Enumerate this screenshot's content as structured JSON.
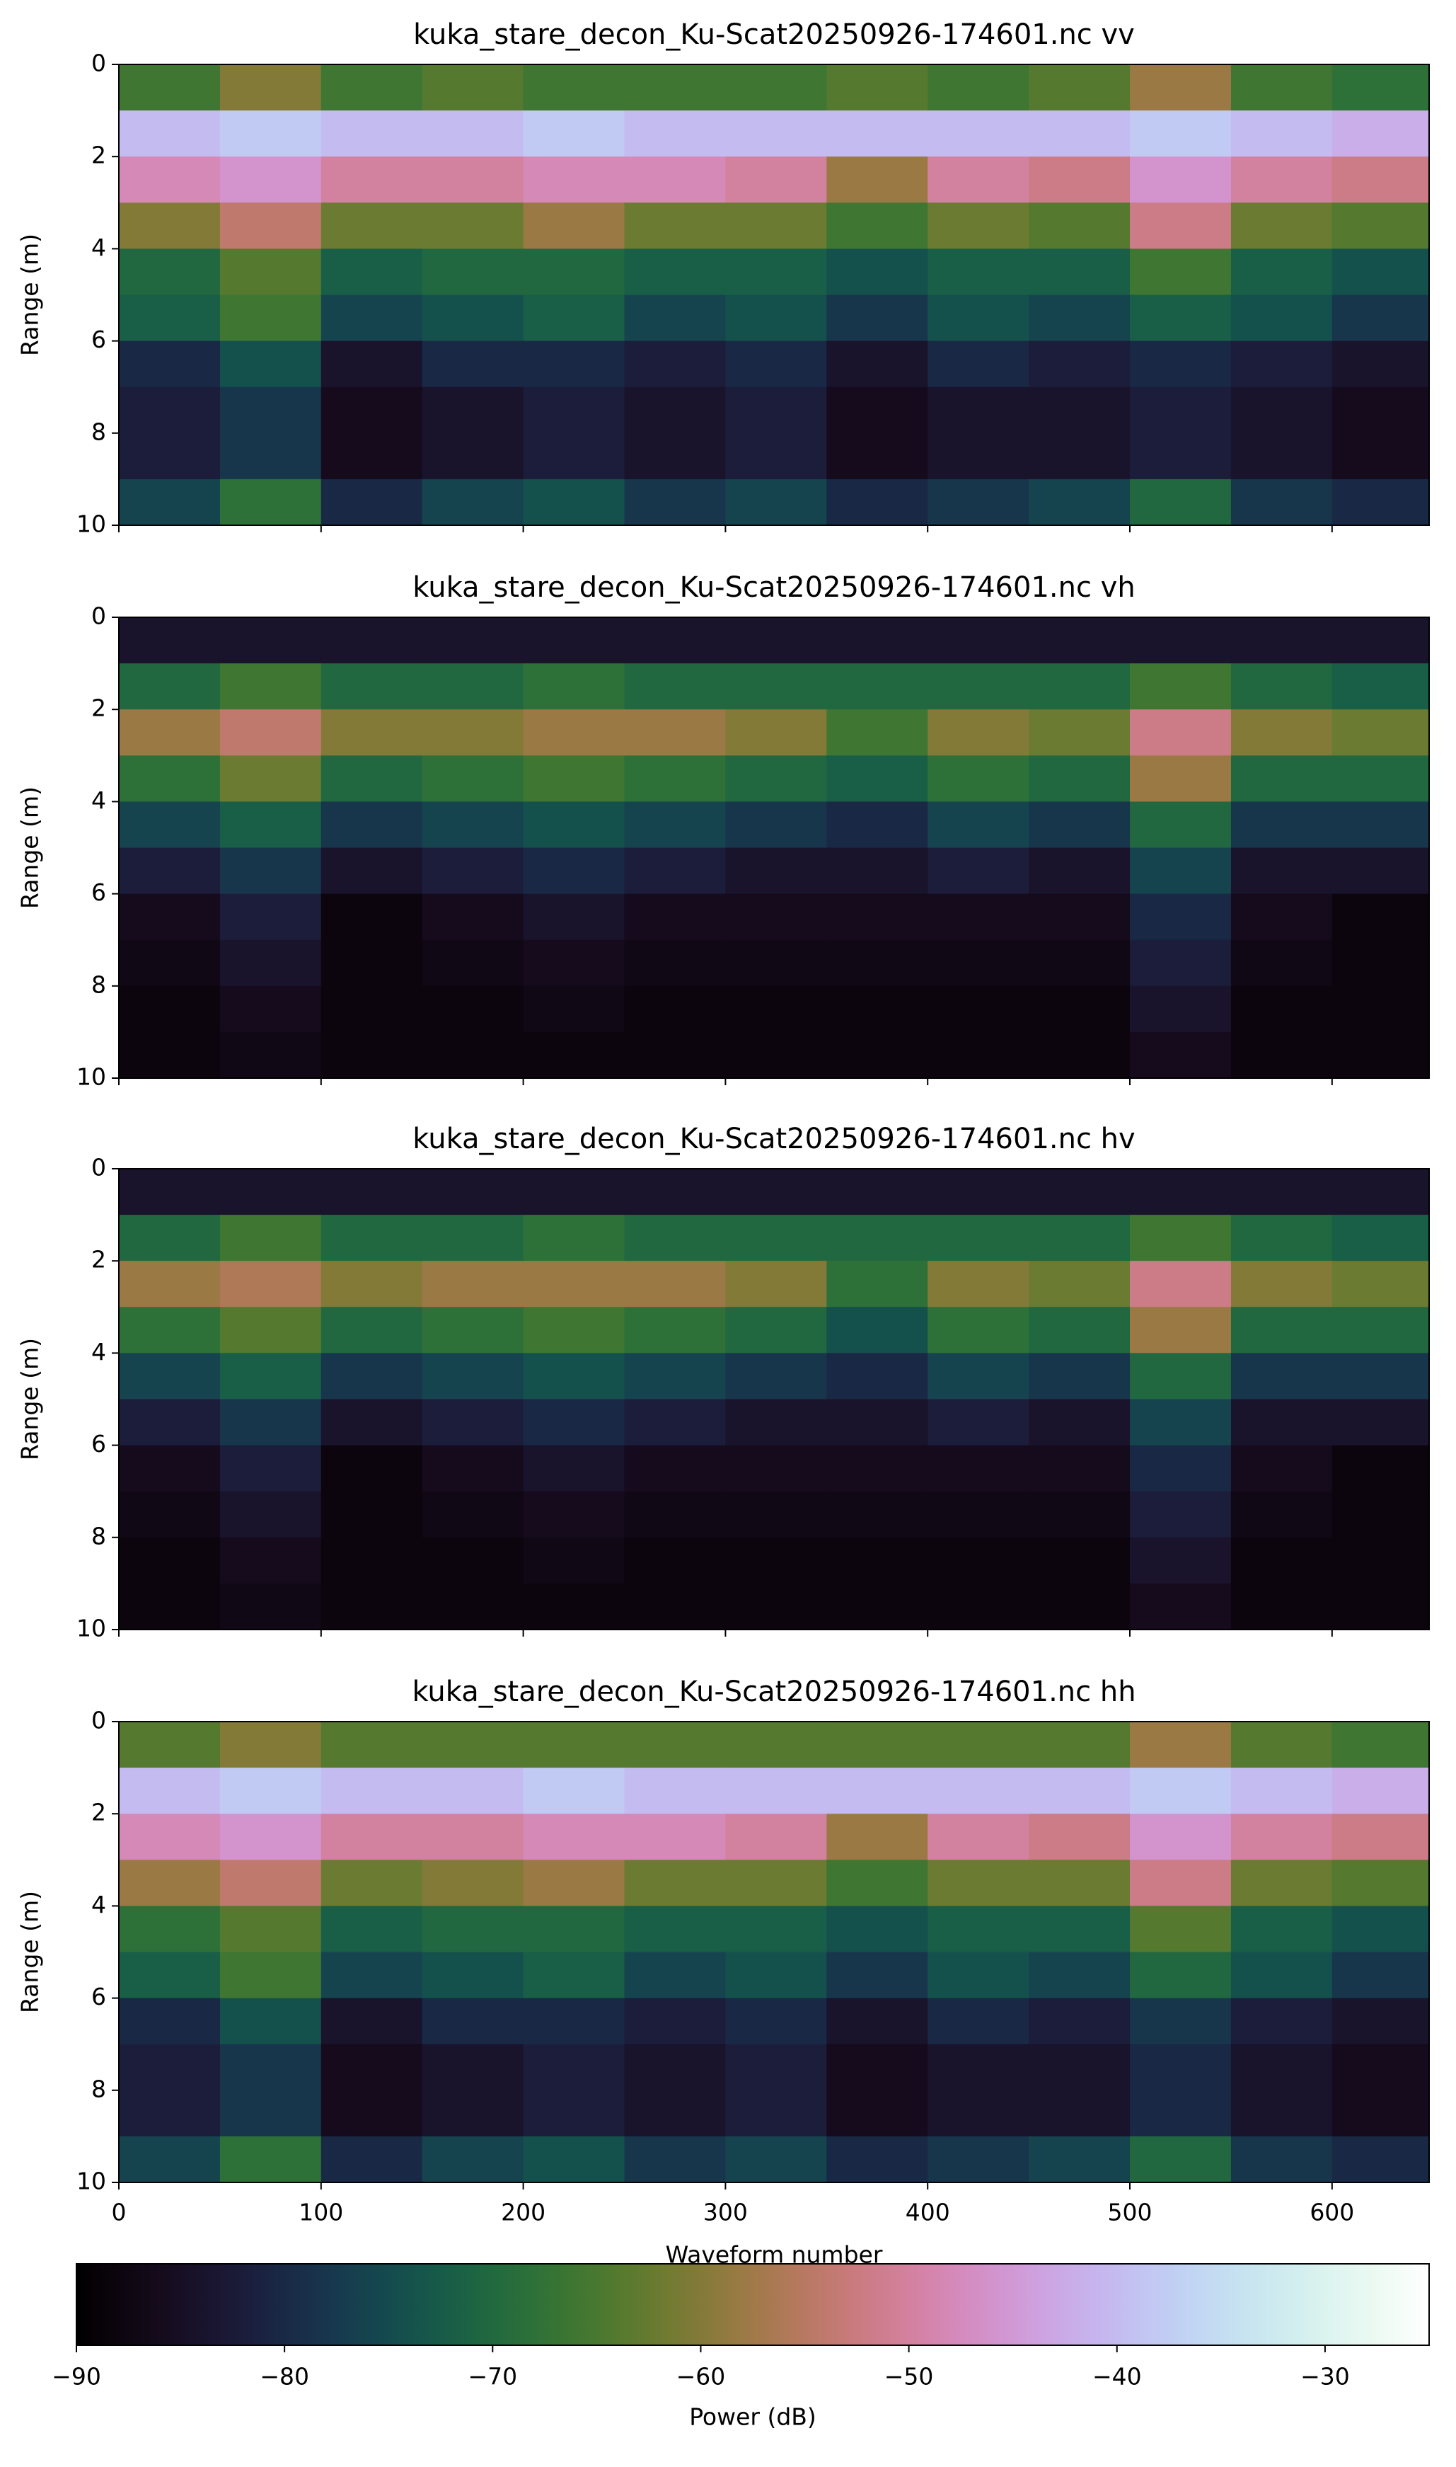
{
  "chart_data": [
    {
      "type": "heatmap",
      "title": "kuka_stare_decon_Ku-Scat20250926-174601.nc vv",
      "ylabel": "Range (m)",
      "x_bins": [
        0,
        50,
        100,
        150,
        200,
        250,
        300,
        350,
        400,
        450,
        500,
        550,
        600,
        648
      ],
      "y_bins": [
        0,
        1,
        2,
        3,
        4,
        5,
        6,
        7,
        8,
        9,
        10
      ],
      "xlim": [
        0,
        648
      ],
      "xticks": [
        0,
        100,
        200,
        300,
        400,
        500,
        600
      ],
      "ylim": [
        10,
        0
      ],
      "yticks": [
        0,
        2,
        4,
        6,
        8,
        10
      ],
      "values": [
        [
          -66,
          -60,
          -66,
          -64,
          -66,
          -66,
          -66,
          -64,
          -66,
          -64,
          -58,
          -66,
          -68
        ],
        [
          -40,
          -38,
          -40,
          -40,
          -38,
          -40,
          -40,
          -40,
          -40,
          -40,
          -38,
          -40,
          -42
        ],
        [
          -48,
          -46,
          -50,
          -50,
          -48,
          -48,
          -50,
          -58,
          -50,
          -52,
          -46,
          -50,
          -52
        ],
        [
          -60,
          -54,
          -62,
          -62,
          -58,
          -62,
          -62,
          -66,
          -62,
          -64,
          -52,
          -62,
          -64
        ],
        [
          -70,
          -64,
          -72,
          -70,
          -70,
          -72,
          -72,
          -74,
          -72,
          -72,
          -66,
          -72,
          -74
        ],
        [
          -72,
          -66,
          -76,
          -74,
          -72,
          -76,
          -74,
          -78,
          -74,
          -76,
          -72,
          -74,
          -78
        ],
        [
          -80,
          -74,
          -84,
          -80,
          -80,
          -82,
          -80,
          -84,
          -80,
          -82,
          -80,
          -82,
          -84
        ],
        [
          -82,
          -78,
          -86,
          -84,
          -82,
          -84,
          -82,
          -86,
          -84,
          -84,
          -82,
          -84,
          -86
        ],
        [
          -82,
          -78,
          -86,
          -84,
          -82,
          -84,
          -82,
          -86,
          -84,
          -84,
          -82,
          -84,
          -86
        ],
        [
          -76,
          -68,
          -80,
          -76,
          -74,
          -78,
          -76,
          -80,
          -78,
          -76,
          -70,
          -78,
          -80
        ]
      ]
    },
    {
      "type": "heatmap",
      "title": "kuka_stare_decon_Ku-Scat20250926-174601.nc vh",
      "ylabel": "Range (m)",
      "x_bins": [
        0,
        50,
        100,
        150,
        200,
        250,
        300,
        350,
        400,
        450,
        500,
        550,
        600,
        648
      ],
      "y_bins": [
        0,
        1,
        2,
        3,
        4,
        5,
        6,
        7,
        8,
        9,
        10
      ],
      "xlim": [
        0,
        648
      ],
      "xticks": [
        0,
        100,
        200,
        300,
        400,
        500,
        600
      ],
      "ylim": [
        10,
        0
      ],
      "yticks": [
        0,
        2,
        4,
        6,
        8,
        10
      ],
      "values": [
        [
          -84,
          -84,
          -84,
          -84,
          -84,
          -84,
          -84,
          -84,
          -84,
          -84,
          -84,
          -84,
          -84
        ],
        [
          -70,
          -66,
          -70,
          -70,
          -68,
          -70,
          -70,
          -70,
          -70,
          -70,
          -66,
          -70,
          -72
        ],
        [
          -58,
          -54,
          -60,
          -60,
          -58,
          -58,
          -60,
          -66,
          -60,
          -62,
          -52,
          -60,
          -62
        ],
        [
          -68,
          -62,
          -70,
          -68,
          -66,
          -68,
          -70,
          -72,
          -68,
          -70,
          -58,
          -70,
          -70
        ],
        [
          -76,
          -72,
          -78,
          -76,
          -74,
          -76,
          -78,
          -80,
          -76,
          -78,
          -70,
          -78,
          -78
        ],
        [
          -82,
          -78,
          -84,
          -82,
          -80,
          -82,
          -84,
          -84,
          -82,
          -84,
          -76,
          -84,
          -84
        ],
        [
          -86,
          -82,
          -88,
          -86,
          -84,
          -86,
          -86,
          -86,
          -86,
          -86,
          -80,
          -86,
          -88
        ],
        [
          -87,
          -84,
          -88,
          -87,
          -86,
          -87,
          -87,
          -87,
          -87,
          -87,
          -82,
          -87,
          -88
        ],
        [
          -88,
          -86,
          -88,
          -88,
          -87,
          -88,
          -88,
          -88,
          -88,
          -88,
          -84,
          -88,
          -88
        ],
        [
          -88,
          -87,
          -88,
          -88,
          -88,
          -88,
          -88,
          -88,
          -88,
          -88,
          -86,
          -88,
          -88
        ]
      ]
    },
    {
      "type": "heatmap",
      "title": "kuka_stare_decon_Ku-Scat20250926-174601.nc hv",
      "ylabel": "Range (m)",
      "x_bins": [
        0,
        50,
        100,
        150,
        200,
        250,
        300,
        350,
        400,
        450,
        500,
        550,
        600,
        648
      ],
      "y_bins": [
        0,
        1,
        2,
        3,
        4,
        5,
        6,
        7,
        8,
        9,
        10
      ],
      "xlim": [
        0,
        648
      ],
      "xticks": [
        0,
        100,
        200,
        300,
        400,
        500,
        600
      ],
      "ylim": [
        10,
        0
      ],
      "yticks": [
        0,
        2,
        4,
        6,
        8,
        10
      ],
      "values": [
        [
          -84,
          -84,
          -84,
          -84,
          -84,
          -84,
          -84,
          -84,
          -84,
          -84,
          -84,
          -84,
          -84
        ],
        [
          -70,
          -66,
          -70,
          -70,
          -68,
          -70,
          -70,
          -70,
          -70,
          -70,
          -66,
          -70,
          -72
        ],
        [
          -58,
          -56,
          -60,
          -58,
          -58,
          -58,
          -60,
          -68,
          -60,
          -62,
          -52,
          -60,
          -62
        ],
        [
          -68,
          -64,
          -70,
          -68,
          -66,
          -68,
          -70,
          -74,
          -68,
          -70,
          -58,
          -70,
          -70
        ],
        [
          -76,
          -72,
          -78,
          -76,
          -74,
          -76,
          -78,
          -80,
          -76,
          -78,
          -70,
          -78,
          -78
        ],
        [
          -82,
          -78,
          -84,
          -82,
          -80,
          -82,
          -84,
          -84,
          -82,
          -84,
          -76,
          -84,
          -84
        ],
        [
          -86,
          -82,
          -88,
          -86,
          -84,
          -86,
          -86,
          -86,
          -86,
          -86,
          -80,
          -86,
          -88
        ],
        [
          -87,
          -84,
          -88,
          -87,
          -86,
          -87,
          -87,
          -87,
          -87,
          -87,
          -82,
          -87,
          -88
        ],
        [
          -88,
          -86,
          -88,
          -88,
          -87,
          -88,
          -88,
          -88,
          -88,
          -88,
          -84,
          -88,
          -88
        ],
        [
          -88,
          -87,
          -88,
          -88,
          -88,
          -88,
          -88,
          -88,
          -88,
          -88,
          -86,
          -88,
          -88
        ]
      ]
    },
    {
      "type": "heatmap",
      "title": "kuka_stare_decon_Ku-Scat20250926-174601.nc hh",
      "ylabel": "Range (m)",
      "xlabel": "Waveform number",
      "x_bins": [
        0,
        50,
        100,
        150,
        200,
        250,
        300,
        350,
        400,
        450,
        500,
        550,
        600,
        648
      ],
      "y_bins": [
        0,
        1,
        2,
        3,
        4,
        5,
        6,
        7,
        8,
        9,
        10
      ],
      "xlim": [
        0,
        648
      ],
      "xticks": [
        0,
        100,
        200,
        300,
        400,
        500,
        600
      ],
      "ylim": [
        10,
        0
      ],
      "yticks": [
        0,
        2,
        4,
        6,
        8,
        10
      ],
      "values": [
        [
          -64,
          -60,
          -64,
          -64,
          -64,
          -64,
          -64,
          -64,
          -64,
          -64,
          -58,
          -64,
          -66
        ],
        [
          -40,
          -38,
          -40,
          -40,
          -38,
          -40,
          -40,
          -40,
          -40,
          -40,
          -38,
          -40,
          -42
        ],
        [
          -48,
          -46,
          -50,
          -50,
          -48,
          -48,
          -50,
          -58,
          -50,
          -52,
          -46,
          -50,
          -52
        ],
        [
          -58,
          -54,
          -62,
          -60,
          -58,
          -62,
          -62,
          -66,
          -62,
          -62,
          -52,
          -62,
          -64
        ],
        [
          -68,
          -64,
          -72,
          -70,
          -70,
          -72,
          -72,
          -74,
          -72,
          -72,
          -64,
          -72,
          -74
        ],
        [
          -72,
          -66,
          -76,
          -74,
          -72,
          -76,
          -74,
          -78,
          -74,
          -76,
          -70,
          -74,
          -78
        ],
        [
          -80,
          -74,
          -84,
          -80,
          -80,
          -82,
          -80,
          -84,
          -80,
          -82,
          -78,
          -82,
          -84
        ],
        [
          -82,
          -78,
          -86,
          -84,
          -82,
          -84,
          -82,
          -86,
          -84,
          -84,
          -80,
          -84,
          -86
        ],
        [
          -82,
          -78,
          -86,
          -84,
          -82,
          -84,
          -82,
          -86,
          -84,
          -84,
          -80,
          -84,
          -86
        ],
        [
          -76,
          -68,
          -80,
          -76,
          -74,
          -78,
          -76,
          -80,
          -78,
          -76,
          -70,
          -78,
          -80
        ]
      ]
    }
  ],
  "colorbar": {
    "label": "Power (dB)",
    "colormap": "cubehelix",
    "lim": [
      -90,
      -25
    ],
    "ticks": [
      {
        "value": -90,
        "label": "−90"
      },
      {
        "value": -80,
        "label": "−80"
      },
      {
        "value": -70,
        "label": "−70"
      },
      {
        "value": -60,
        "label": "−60"
      },
      {
        "value": -50,
        "label": "−50"
      },
      {
        "value": -40,
        "label": "−40"
      },
      {
        "value": -30,
        "label": "−30"
      }
    ]
  }
}
